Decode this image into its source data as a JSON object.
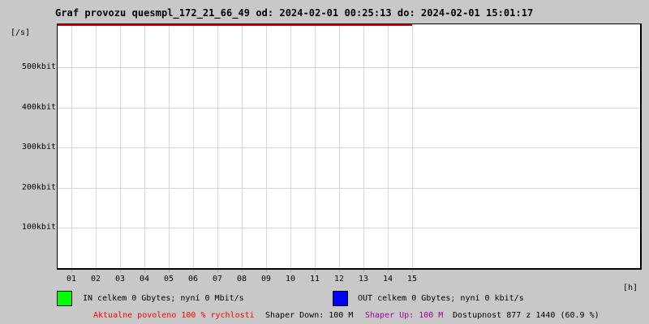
{
  "title": "Graf provozu quesmpl_172_21_66_49 od: 2024-02-01 00:25:13 do: 2024-02-01 15:01:17",
  "y_axis": {
    "unit": "[/s]",
    "ticks": [
      "500kbit",
      "400kbit",
      "300kbit",
      "200kbit",
      "100kbit"
    ]
  },
  "x_axis": {
    "unit": "[h]",
    "ticks": [
      "01",
      "02",
      "03",
      "04",
      "05",
      "06",
      "07",
      "08",
      "09",
      "10",
      "11",
      "12",
      "13",
      "14",
      "15"
    ]
  },
  "legend": {
    "in_label": "IN celkem 0 Gbytes; nyní 0 Mbit/s",
    "out_label": "OUT celkem 0 Gbytes; nyní 0 kbit/s"
  },
  "footer": {
    "allowed": "Aktualne povoleno 100 % rychlosti",
    "shaper_down": "Shaper Down: 100 M",
    "shaper_up": "Shaper Up: 100 M",
    "availability": "Dostupnost 877 z 1440 (60.9 %)"
  },
  "colors": {
    "background": "#c8c8c8",
    "plot_bg": "#ffffff",
    "grid": "#d6d6d6",
    "tick": "#aaaaaa",
    "limit_line": "#dd0000",
    "in_swatch": "#00ff00",
    "out_swatch": "#0000ff",
    "allowed_text": "#ff0000",
    "shaper_up_text": "#a000a0"
  },
  "chart_data": {
    "type": "line",
    "title": "Graf provozu quesmpl_172_21_66_49",
    "time_from": "2024-02-01 00:25:13",
    "time_to": "2024-02-01 15:01:17",
    "xlabel": "[h]",
    "ylabel": "[/s]",
    "x_ticks_hours": [
      1,
      2,
      3,
      4,
      5,
      6,
      7,
      8,
      9,
      10,
      11,
      12,
      13,
      14,
      15
    ],
    "y_ticks_kbit": [
      100,
      200,
      300,
      400,
      500
    ],
    "ylim_kbit": [
      0,
      605
    ],
    "grid": true,
    "series": [
      {
        "name": "IN",
        "color": "#00ff00",
        "total": "0 Gbytes",
        "current": "0 Mbit/s",
        "values_kbit": [
          0,
          0,
          0,
          0,
          0,
          0,
          0,
          0,
          0,
          0,
          0,
          0,
          0,
          0,
          0
        ]
      },
      {
        "name": "OUT",
        "color": "#0000ff",
        "total": "0 Gbytes",
        "current": "0 kbit/s",
        "values_kbit": [
          0,
          0,
          0,
          0,
          0,
          0,
          0,
          0,
          0,
          0,
          0,
          0,
          0,
          0,
          0
        ]
      }
    ],
    "limit_line": {
      "color": "#dd0000",
      "position": "top of plot (max scale)",
      "x_range_hours": [
        0,
        15
      ]
    },
    "legend_position": "below chart",
    "notes": "empty plot, no traffic drawn; gridded region covers hours 01-15 only"
  }
}
